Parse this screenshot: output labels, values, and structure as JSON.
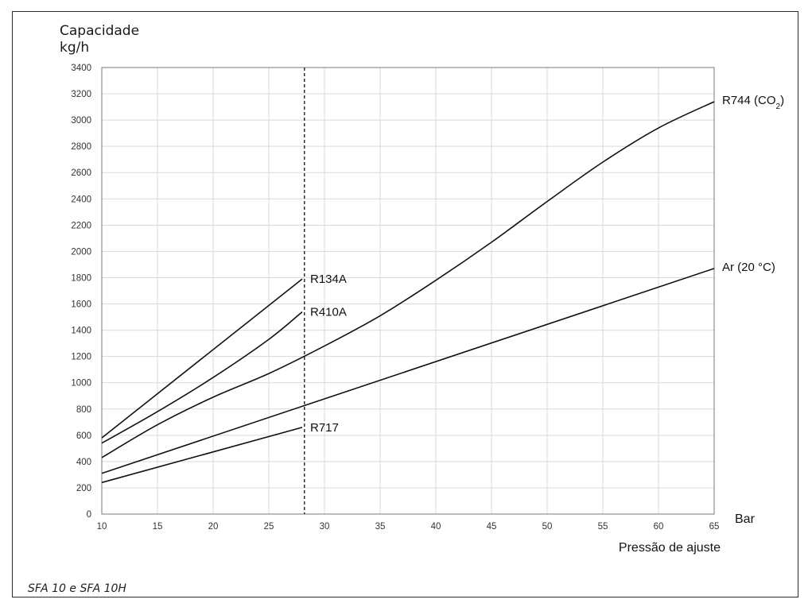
{
  "chart_data": {
    "type": "line",
    "title": "",
    "ylabel_line1": "Capacidade",
    "ylabel_line2": "kg/h",
    "xlabel": "Pressão de ajuste",
    "xunit": "Bar",
    "caption": "SFA 10 e SFA 10H",
    "xlim": [
      10,
      65
    ],
    "ylim": [
      0,
      3400
    ],
    "xticks": [
      10,
      15,
      20,
      25,
      30,
      35,
      40,
      45,
      50,
      55,
      60,
      65
    ],
    "yticks": [
      0,
      200,
      400,
      600,
      800,
      1000,
      1200,
      1400,
      1600,
      1800,
      2000,
      2200,
      2400,
      2600,
      2800,
      3000,
      3200,
      3400
    ],
    "grid": true,
    "reference_line_x": 28.2,
    "series": [
      {
        "name": "R134A",
        "x": [
          10,
          28
        ],
        "y": [
          580,
          1790
        ]
      },
      {
        "name": "R410A",
        "x": [
          10,
          15,
          20,
          25,
          28
        ],
        "y": [
          540,
          780,
          1040,
          1330,
          1540
        ]
      },
      {
        "name": "R744 (CO",
        "name_sub": "2",
        "name_suffix": ")",
        "x": [
          10,
          15,
          20,
          25,
          30,
          35,
          40,
          45,
          50,
          55,
          60,
          65
        ],
        "y": [
          430,
          680,
          890,
          1070,
          1280,
          1510,
          1780,
          2070,
          2380,
          2680,
          2940,
          3140
        ]
      },
      {
        "name": "Ar (20 °C)",
        "x": [
          10,
          65
        ],
        "y": [
          310,
          1870
        ]
      },
      {
        "name": "R717",
        "x": [
          10,
          28
        ],
        "y": [
          240,
          660
        ]
      }
    ]
  }
}
